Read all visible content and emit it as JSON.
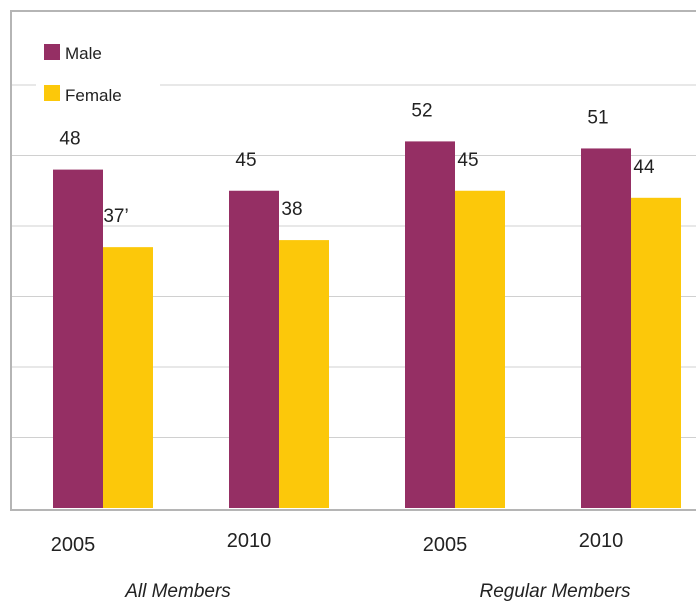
{
  "chart_data": {
    "type": "bar",
    "ylim": [
      0,
      70
    ],
    "grid": true,
    "legend_position": "top-left",
    "groups": [
      {
        "label": "All Members",
        "categories": [
          "2005",
          "2010"
        ]
      },
      {
        "label": "Regular Members",
        "categories": [
          "2005",
          "2010"
        ]
      }
    ],
    "categories": [
      "2005",
      "2010",
      "2005",
      "2010"
    ],
    "series": [
      {
        "name": "Male",
        "color": "#952f64",
        "values": [
          48,
          45,
          52,
          51
        ],
        "labels": [
          "48",
          "45",
          "52",
          "51"
        ]
      },
      {
        "name": "Female",
        "color": "#fcc80a",
        "values": [
          37,
          38,
          45,
          44
        ],
        "labels": [
          "37’",
          "38",
          "45",
          "44"
        ]
      }
    ]
  }
}
